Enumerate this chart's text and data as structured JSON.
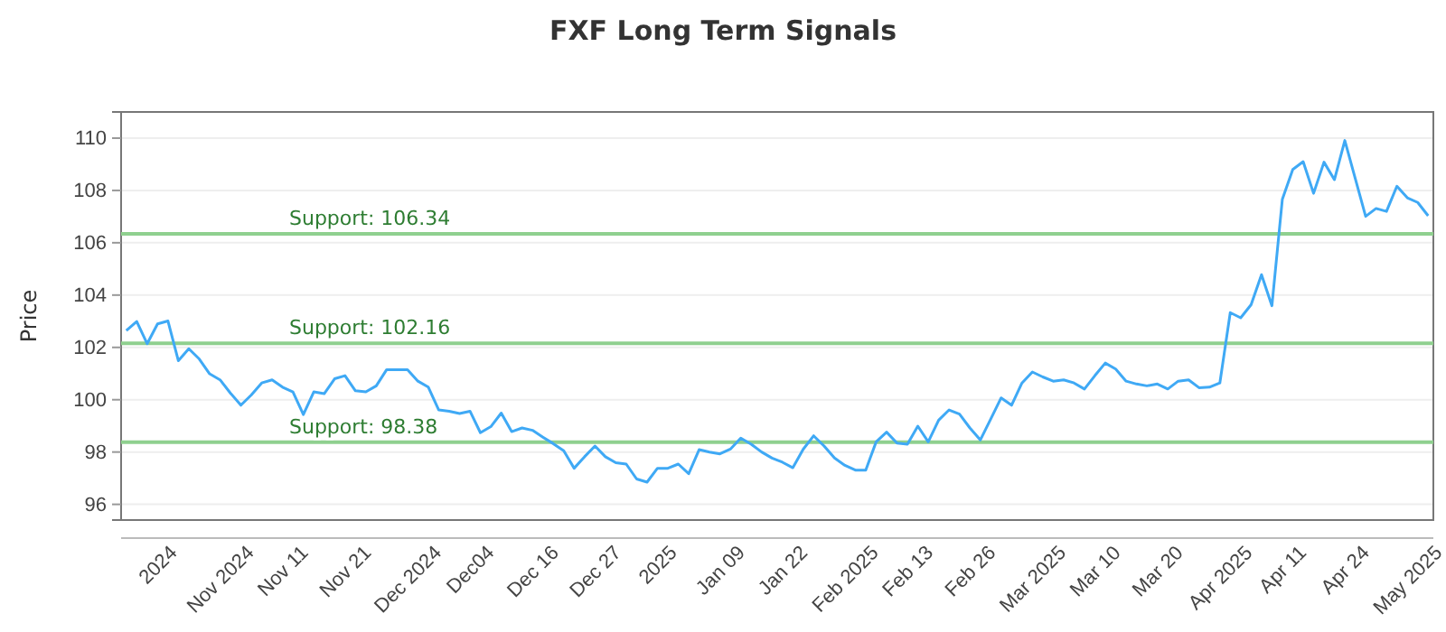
{
  "chart_data": {
    "type": "line",
    "title": "FXF Long Term Signals",
    "ylabel": "Price",
    "categories": [
      null,
      null,
      null,
      "2024",
      null,
      null,
      null,
      null,
      null,
      "Nov 2024",
      null,
      null,
      null,
      null,
      null,
      "Nov 11",
      null,
      null,
      null,
      null,
      null,
      "Nov 21",
      null,
      null,
      null,
      null,
      null,
      "Dec 2024",
      null,
      null,
      null,
      null,
      null,
      "Dec04",
      null,
      null,
      null,
      null,
      null,
      "Dec 16",
      null,
      null,
      null,
      null,
      null,
      "Dec 27",
      null,
      null,
      null,
      null,
      null,
      "2025",
      null,
      null,
      null,
      null,
      null,
      "Jan 09",
      null,
      null,
      null,
      null,
      null,
      "Jan 22",
      null,
      null,
      null,
      null,
      null,
      "Feb 2025",
      null,
      null,
      null,
      null,
      null,
      "Feb 13",
      null,
      null,
      null,
      null,
      null,
      "Feb 26",
      null,
      null,
      null,
      null,
      null,
      "Mar 2025",
      null,
      null,
      null,
      null,
      null,
      "Mar 10",
      null,
      null,
      null,
      null,
      null,
      "Mar 20",
      null,
      null,
      null,
      null,
      null,
      "Apr 2025",
      null,
      null,
      null,
      null,
      null,
      "Apr 11",
      null,
      null,
      null,
      null,
      null,
      "Apr 24",
      null,
      null,
      null,
      null,
      null,
      "May 2025",
      null,
      null
    ],
    "series": [
      {
        "color": "#3fa9f5",
        "values": [
          102.64,
          102.99,
          102.14,
          102.9,
          103.01,
          101.49,
          101.95,
          101.56,
          100.99,
          100.76,
          100.25,
          99.79,
          100.18,
          100.64,
          100.76,
          100.48,
          100.3,
          99.43,
          100.3,
          100.23,
          100.8,
          100.92,
          100.34,
          100.3,
          100.53,
          101.15,
          101.15,
          101.15,
          100.71,
          100.48,
          99.61,
          99.56,
          99.47,
          99.56,
          98.74,
          98.97,
          99.49,
          98.78,
          98.92,
          98.83,
          98.57,
          98.32,
          98.05,
          97.38,
          97.82,
          98.23,
          97.82,
          97.59,
          97.54,
          96.97,
          96.85,
          97.38,
          97.38,
          97.54,
          97.17,
          98.09,
          98.0,
          97.93,
          98.11,
          98.53,
          98.3,
          98.0,
          97.77,
          97.61,
          97.4,
          98.11,
          98.62,
          98.23,
          97.77,
          97.49,
          97.31,
          97.31,
          98.39,
          98.76,
          98.34,
          98.3,
          98.99,
          98.39,
          99.22,
          99.61,
          99.45,
          98.92,
          98.46,
          99.26,
          100.07,
          99.79,
          100.64,
          101.06,
          100.87,
          100.71,
          100.76,
          100.64,
          100.41,
          100.92,
          101.4,
          101.17,
          100.71,
          100.6,
          100.53,
          100.6,
          100.41,
          100.71,
          100.76,
          100.46,
          100.48,
          100.64,
          103.33,
          103.13,
          103.63,
          104.78,
          103.59,
          107.66,
          108.8,
          109.1,
          107.89,
          109.08,
          108.41,
          109.91,
          108.46,
          107.01,
          107.31,
          107.2,
          108.16,
          107.72,
          107.54,
          107.03
        ]
      }
    ],
    "ylim": [
      95.4,
      111
    ],
    "yticks": [
      96,
      98,
      100,
      102,
      104,
      106,
      108,
      110
    ],
    "grid": "y",
    "ref_lines": [
      {
        "axis": "y",
        "value": 106.34,
        "label": "Support: 106.34",
        "color": "#8fd08f"
      },
      {
        "axis": "y",
        "value": 102.16,
        "label": "Support: 102.16",
        "color": "#8fd08f"
      },
      {
        "axis": "y",
        "value": 98.38,
        "label": "Support: 98.38",
        "color": "#8fd08f"
      }
    ]
  }
}
